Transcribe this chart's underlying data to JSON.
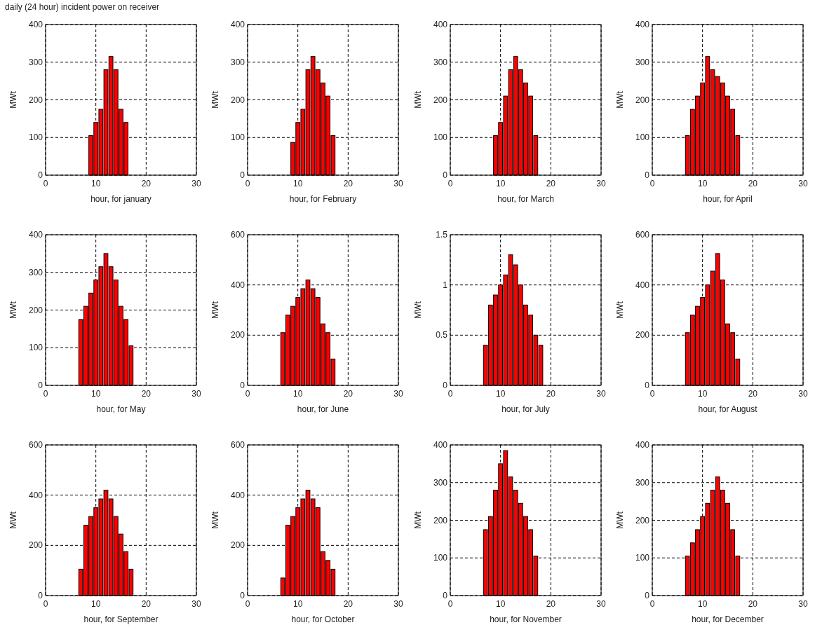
{
  "chart_data": [
    {
      "type": "bar",
      "title": "daily (24 hour) incident power on receiver",
      "xlabel": "hour, for january",
      "ylabel": "MWt",
      "x": [
        9,
        10,
        11,
        12,
        13,
        14,
        15,
        16
      ],
      "values": [
        105,
        140,
        175,
        280,
        315,
        280,
        175,
        140
      ],
      "color": "#ff0000",
      "xlim": [
        0,
        30
      ],
      "xticks": [
        0,
        10,
        20,
        30
      ],
      "ylim": [
        0,
        400
      ],
      "yticks": [
        0,
        100,
        200,
        300,
        400
      ],
      "grid": true
    },
    {
      "type": "bar",
      "xlabel": "hour, for February",
      "ylabel": "MWt",
      "x": [
        9,
        10,
        11,
        12,
        13,
        14,
        15,
        16,
        17
      ],
      "values": [
        87,
        140,
        175,
        280,
        315,
        280,
        245,
        210,
        105
      ],
      "color": "#ff0000",
      "xlim": [
        0,
        30
      ],
      "xticks": [
        0,
        10,
        20,
        30
      ],
      "ylim": [
        0,
        400
      ],
      "yticks": [
        0,
        100,
        200,
        300,
        400
      ],
      "grid": true
    },
    {
      "type": "bar",
      "xlabel": "hour, for March",
      "ylabel": "MWt",
      "x": [
        9,
        10,
        11,
        12,
        13,
        14,
        15,
        16,
        17
      ],
      "values": [
        105,
        140,
        210,
        280,
        315,
        280,
        245,
        210,
        105
      ],
      "color": "#ff0000",
      "xlim": [
        0,
        30
      ],
      "xticks": [
        0,
        10,
        20,
        30
      ],
      "ylim": [
        0,
        400
      ],
      "yticks": [
        0,
        100,
        200,
        300,
        400
      ],
      "grid": true
    },
    {
      "type": "bar",
      "xlabel": "hour, for April",
      "ylabel": "MWt",
      "x": [
        7,
        8,
        9,
        10,
        11,
        12,
        13,
        14,
        15,
        16,
        17
      ],
      "values": [
        105,
        175,
        210,
        245,
        315,
        280,
        262,
        245,
        210,
        175,
        105
      ],
      "color": "#ff0000",
      "xlim": [
        0,
        30
      ],
      "xticks": [
        0,
        10,
        20,
        30
      ],
      "ylim": [
        0,
        400
      ],
      "yticks": [
        0,
        100,
        200,
        300,
        400
      ],
      "grid": true
    },
    {
      "type": "bar",
      "xlabel": "hour, for May",
      "ylabel": "MWt",
      "x": [
        7,
        8,
        9,
        10,
        11,
        12,
        13,
        14,
        15,
        16,
        17
      ],
      "values": [
        175,
        210,
        245,
        280,
        315,
        350,
        315,
        280,
        210,
        175,
        105
      ],
      "color": "#ff0000",
      "xlim": [
        0,
        30
      ],
      "xticks": [
        0,
        10,
        20,
        30
      ],
      "ylim": [
        0,
        400
      ],
      "yticks": [
        0,
        100,
        200,
        300,
        400
      ],
      "grid": true
    },
    {
      "type": "bar",
      "xlabel": "hour, for June",
      "ylabel": "MWt",
      "x": [
        7,
        8,
        9,
        10,
        11,
        12,
        13,
        14,
        15,
        16,
        17
      ],
      "values": [
        210,
        280,
        315,
        350,
        385,
        420,
        385,
        350,
        245,
        210,
        105
      ],
      "color": "#ff0000",
      "xlim": [
        0,
        30
      ],
      "xticks": [
        0,
        10,
        20,
        30
      ],
      "ylim": [
        0,
        600
      ],
      "yticks": [
        0,
        200,
        400,
        600
      ],
      "grid": true
    },
    {
      "type": "bar",
      "xlabel": "hour, for July",
      "ylabel": "MWt",
      "x": [
        7,
        8,
        9,
        10,
        11,
        12,
        13,
        14,
        15,
        16,
        17,
        18
      ],
      "values": [
        0.4,
        0.8,
        0.9,
        1.0,
        1.1,
        1.3,
        1.2,
        1.0,
        0.8,
        0.7,
        0.5,
        0.4
      ],
      "color": "#ff0000",
      "xlim": [
        0,
        30
      ],
      "xticks": [
        0,
        10,
        20,
        30
      ],
      "ylim": [
        0,
        1.5
      ],
      "yticks": [
        0,
        0.5,
        1,
        1.5
      ],
      "grid": true
    },
    {
      "type": "bar",
      "xlabel": "hour, for August",
      "ylabel": "MWt",
      "x": [
        7,
        8,
        9,
        10,
        11,
        12,
        13,
        14,
        15,
        16,
        17
      ],
      "values": [
        210,
        280,
        315,
        350,
        400,
        455,
        525,
        420,
        245,
        210,
        105
      ],
      "color": "#ff0000",
      "xlim": [
        0,
        30
      ],
      "xticks": [
        0,
        10,
        20,
        30
      ],
      "ylim": [
        0,
        600
      ],
      "yticks": [
        0,
        200,
        400,
        600
      ],
      "grid": true
    },
    {
      "type": "bar",
      "xlabel": "hour, for September",
      "ylabel": "MWt",
      "x": [
        7,
        8,
        9,
        10,
        11,
        12,
        13,
        14,
        15,
        16,
        17
      ],
      "values": [
        105,
        280,
        315,
        350,
        385,
        420,
        385,
        315,
        245,
        175,
        105
      ],
      "color": "#ff0000",
      "xlim": [
        0,
        30
      ],
      "xticks": [
        0,
        10,
        20,
        30
      ],
      "ylim": [
        0,
        600
      ],
      "yticks": [
        0,
        200,
        400,
        600
      ],
      "grid": true
    },
    {
      "type": "bar",
      "xlabel": "hour, for October",
      "ylabel": "MWt",
      "x": [
        7,
        8,
        9,
        10,
        11,
        12,
        13,
        14,
        15,
        16,
        17
      ],
      "values": [
        70,
        280,
        315,
        350,
        385,
        420,
        385,
        350,
        175,
        140,
        105
      ],
      "color": "#ff0000",
      "xlim": [
        0,
        30
      ],
      "xticks": [
        0,
        10,
        20,
        30
      ],
      "ylim": [
        0,
        600
      ],
      "yticks": [
        0,
        200,
        400,
        600
      ],
      "grid": true
    },
    {
      "type": "bar",
      "xlabel": "hour, for November",
      "ylabel": "MWt",
      "x": [
        7,
        8,
        9,
        10,
        11,
        12,
        13,
        14,
        15,
        16,
        17
      ],
      "values": [
        175,
        210,
        280,
        350,
        385,
        315,
        280,
        245,
        210,
        175,
        105
      ],
      "color": "#ff0000",
      "xlim": [
        0,
        30
      ],
      "xticks": [
        0,
        10,
        20,
        30
      ],
      "ylim": [
        0,
        400
      ],
      "yticks": [
        0,
        100,
        200,
        300,
        400
      ],
      "grid": true
    },
    {
      "type": "bar",
      "xlabel": "hour, for December",
      "ylabel": "MWt",
      "x": [
        7,
        8,
        9,
        10,
        11,
        12,
        13,
        14,
        15,
        16,
        17
      ],
      "values": [
        105,
        140,
        175,
        210,
        245,
        280,
        315,
        280,
        245,
        175,
        105
      ],
      "color": "#ff0000",
      "xlim": [
        0,
        30
      ],
      "xticks": [
        0,
        10,
        20,
        30
      ],
      "ylim": [
        0,
        400
      ],
      "yticks": [
        0,
        100,
        200,
        300,
        400
      ],
      "grid": true
    }
  ]
}
